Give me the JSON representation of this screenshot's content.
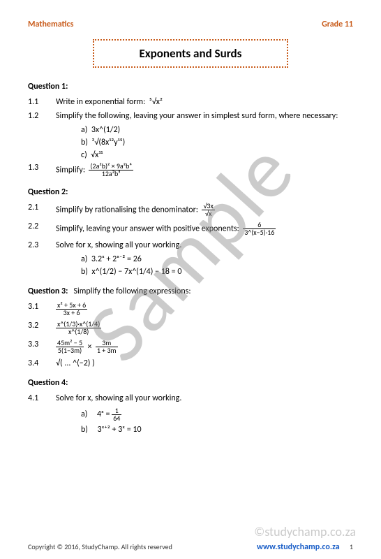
{
  "header": {
    "subject": "Mathematics",
    "grade": "Grade 11"
  },
  "title": "Exponents and Surds",
  "q1": {
    "heading": "Question 1:",
    "p1_num": "1.1",
    "p1_text": "Write in exponential form:",
    "p1_expr": "⁵√x²",
    "p2_num": "1.2",
    "p2_text": "Simplify the following, leaving your answer in simplest surd form, where necessary:",
    "a_label": "a)",
    "a_expr": "3x^(1/2)",
    "b_label": "b)",
    "b_expr": "³√(8x¹²y¹⁵)",
    "c_label": "c)",
    "c_expr": "√x¹¹",
    "p3_num": "1.3",
    "p3_text": "Simplify:",
    "p3_frac_top": "(2a²b)² × 9a²b⁴",
    "p3_frac_bot": "12a²b⁵"
  },
  "q2": {
    "heading": "Question 2:",
    "p1_num": "2.1",
    "p1_text": "Simplify by rationalising the denominator:",
    "p1_frac_top": "√3x",
    "p1_frac_bot": "√x",
    "p2_num": "2.2",
    "p2_text": "Simplify, leaving your answer with positive exponents:",
    "p2_frac_top": "6",
    "p2_frac_bot": "3^(x−5)·16",
    "p3_num": "2.3",
    "p3_text": "Solve for x, showing all your working.",
    "a_label": "a)",
    "a_expr": "3.2ˣ + 2ˣ⁻² = 26",
    "b_label": "b)",
    "b_expr": "x^(1/2) − 7x^(1/4) − 18 = 0"
  },
  "q3": {
    "heading_prefix": "Question 3:",
    "heading_text": "Simplify the following expressions:",
    "p1_num": "3.1",
    "p1_top": "x² + 5x + 6",
    "p1_bot": "3x + 6",
    "p2_num": "3.2",
    "p2_top": "x^(1/3)·x^(1/4)",
    "p2_bot": "x^(1/8)",
    "p3_num": "3.3",
    "p3_a_top": "45m² − 5",
    "p3_a_bot": "5(1−3m)",
    "p3_times": "×",
    "p3_b_top": "3m",
    "p3_b_bot": "1 + 3m",
    "p4_num": "3.4",
    "p4_expr": "√( ... ^(−2) )"
  },
  "q4": {
    "heading": "Question 4:",
    "p1_num": "4.1",
    "p1_text": "Solve for x, showing all your working.",
    "a_label": "a)",
    "a_expr_left": "4ˣ =",
    "a_frac_top": "1",
    "a_frac_bot": "64",
    "b_label": "b)",
    "b_expr": "3ˣ⁺² + 3ˣ = 10"
  },
  "watermarks": {
    "big": "Sample",
    "small": "©studychamp.co.za"
  },
  "footer": {
    "copyright": "Copyright © 2016, StudyChamp. All rights reserved",
    "url": "www.studychamp.co.za",
    "page": "1"
  }
}
